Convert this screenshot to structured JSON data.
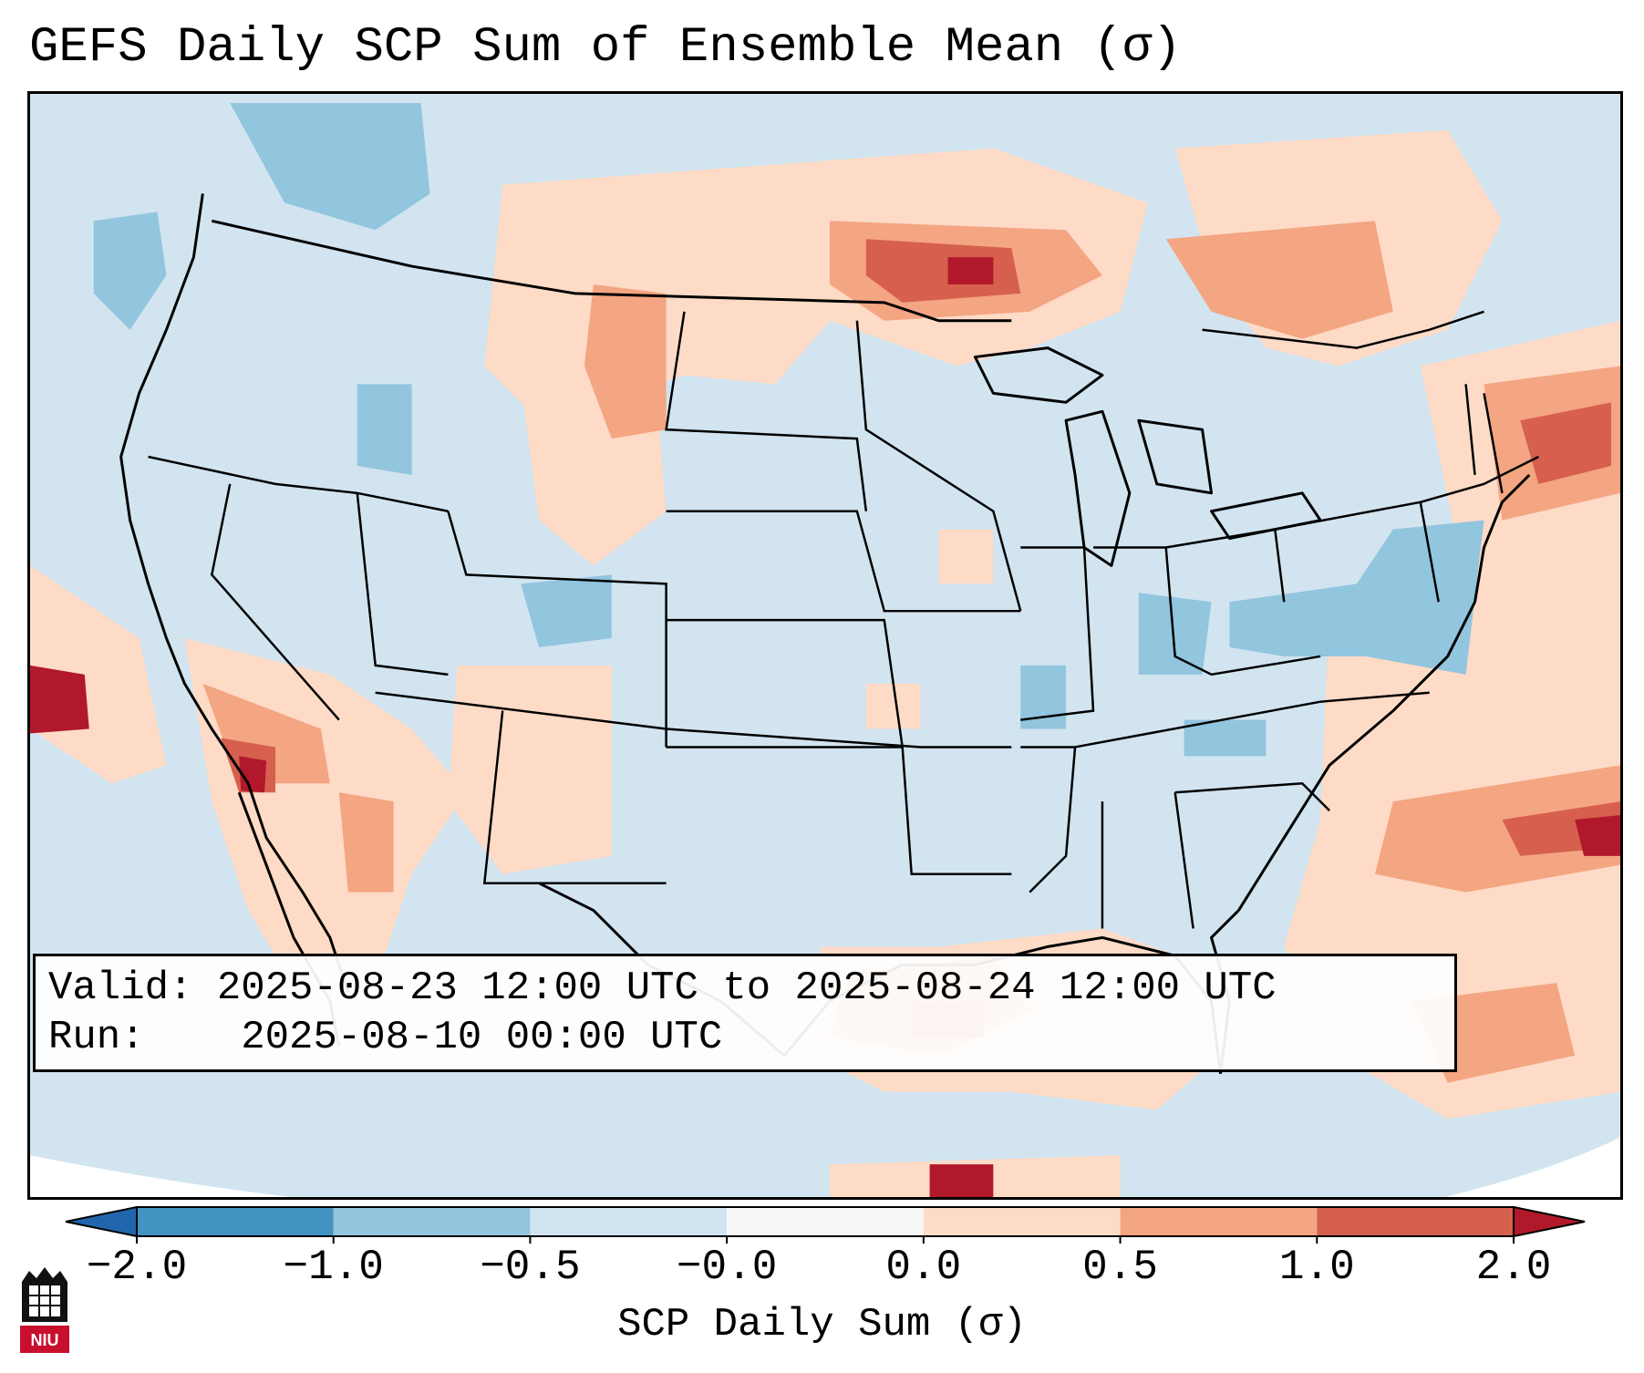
{
  "title": "GEFS Daily SCP Sum of Ensemble Mean (σ)",
  "info": {
    "valid_label": "Valid:",
    "valid_value": "2025-08-23 12:00 UTC to 2025-08-24 12:00 UTC",
    "run_label": "Run:",
    "run_value": "2025-08-10 00:00 UTC"
  },
  "colorbar": {
    "label": "SCP Daily Sum (σ)",
    "ticks": [
      "−2.0",
      "−1.0",
      "−0.5",
      "−0.0",
      "0.0",
      "0.5",
      "1.0",
      "2.0"
    ],
    "colors": [
      "#4393c3",
      "#92c5de",
      "#d1e5f0",
      "#f7f7f7",
      "#fddbc7",
      "#f4a582",
      "#d6604d"
    ],
    "extend_min_color": "#2166ac",
    "extend_max_color": "#b2182b"
  },
  "map": {
    "background_color": "#d1e4f0",
    "border_color": "#000000",
    "highlight_regions": [
      {
        "name": "northern-minnesota-ontario",
        "level": 1.0
      },
      {
        "name": "north-dakota-montana",
        "level": 0.5
      },
      {
        "name": "southern-california",
        "level": 1.0
      },
      {
        "name": "offshore-pacific",
        "level": 2.0
      },
      {
        "name": "gulf-of-mexico",
        "level": 0.5
      },
      {
        "name": "western-atlantic",
        "level": 1.0
      },
      {
        "name": "canadian-maritimes",
        "level": 1.0
      },
      {
        "name": "ohio-valley",
        "level": -0.5
      }
    ]
  },
  "logo": {
    "text": "NIU",
    "color": "#c8102e"
  }
}
